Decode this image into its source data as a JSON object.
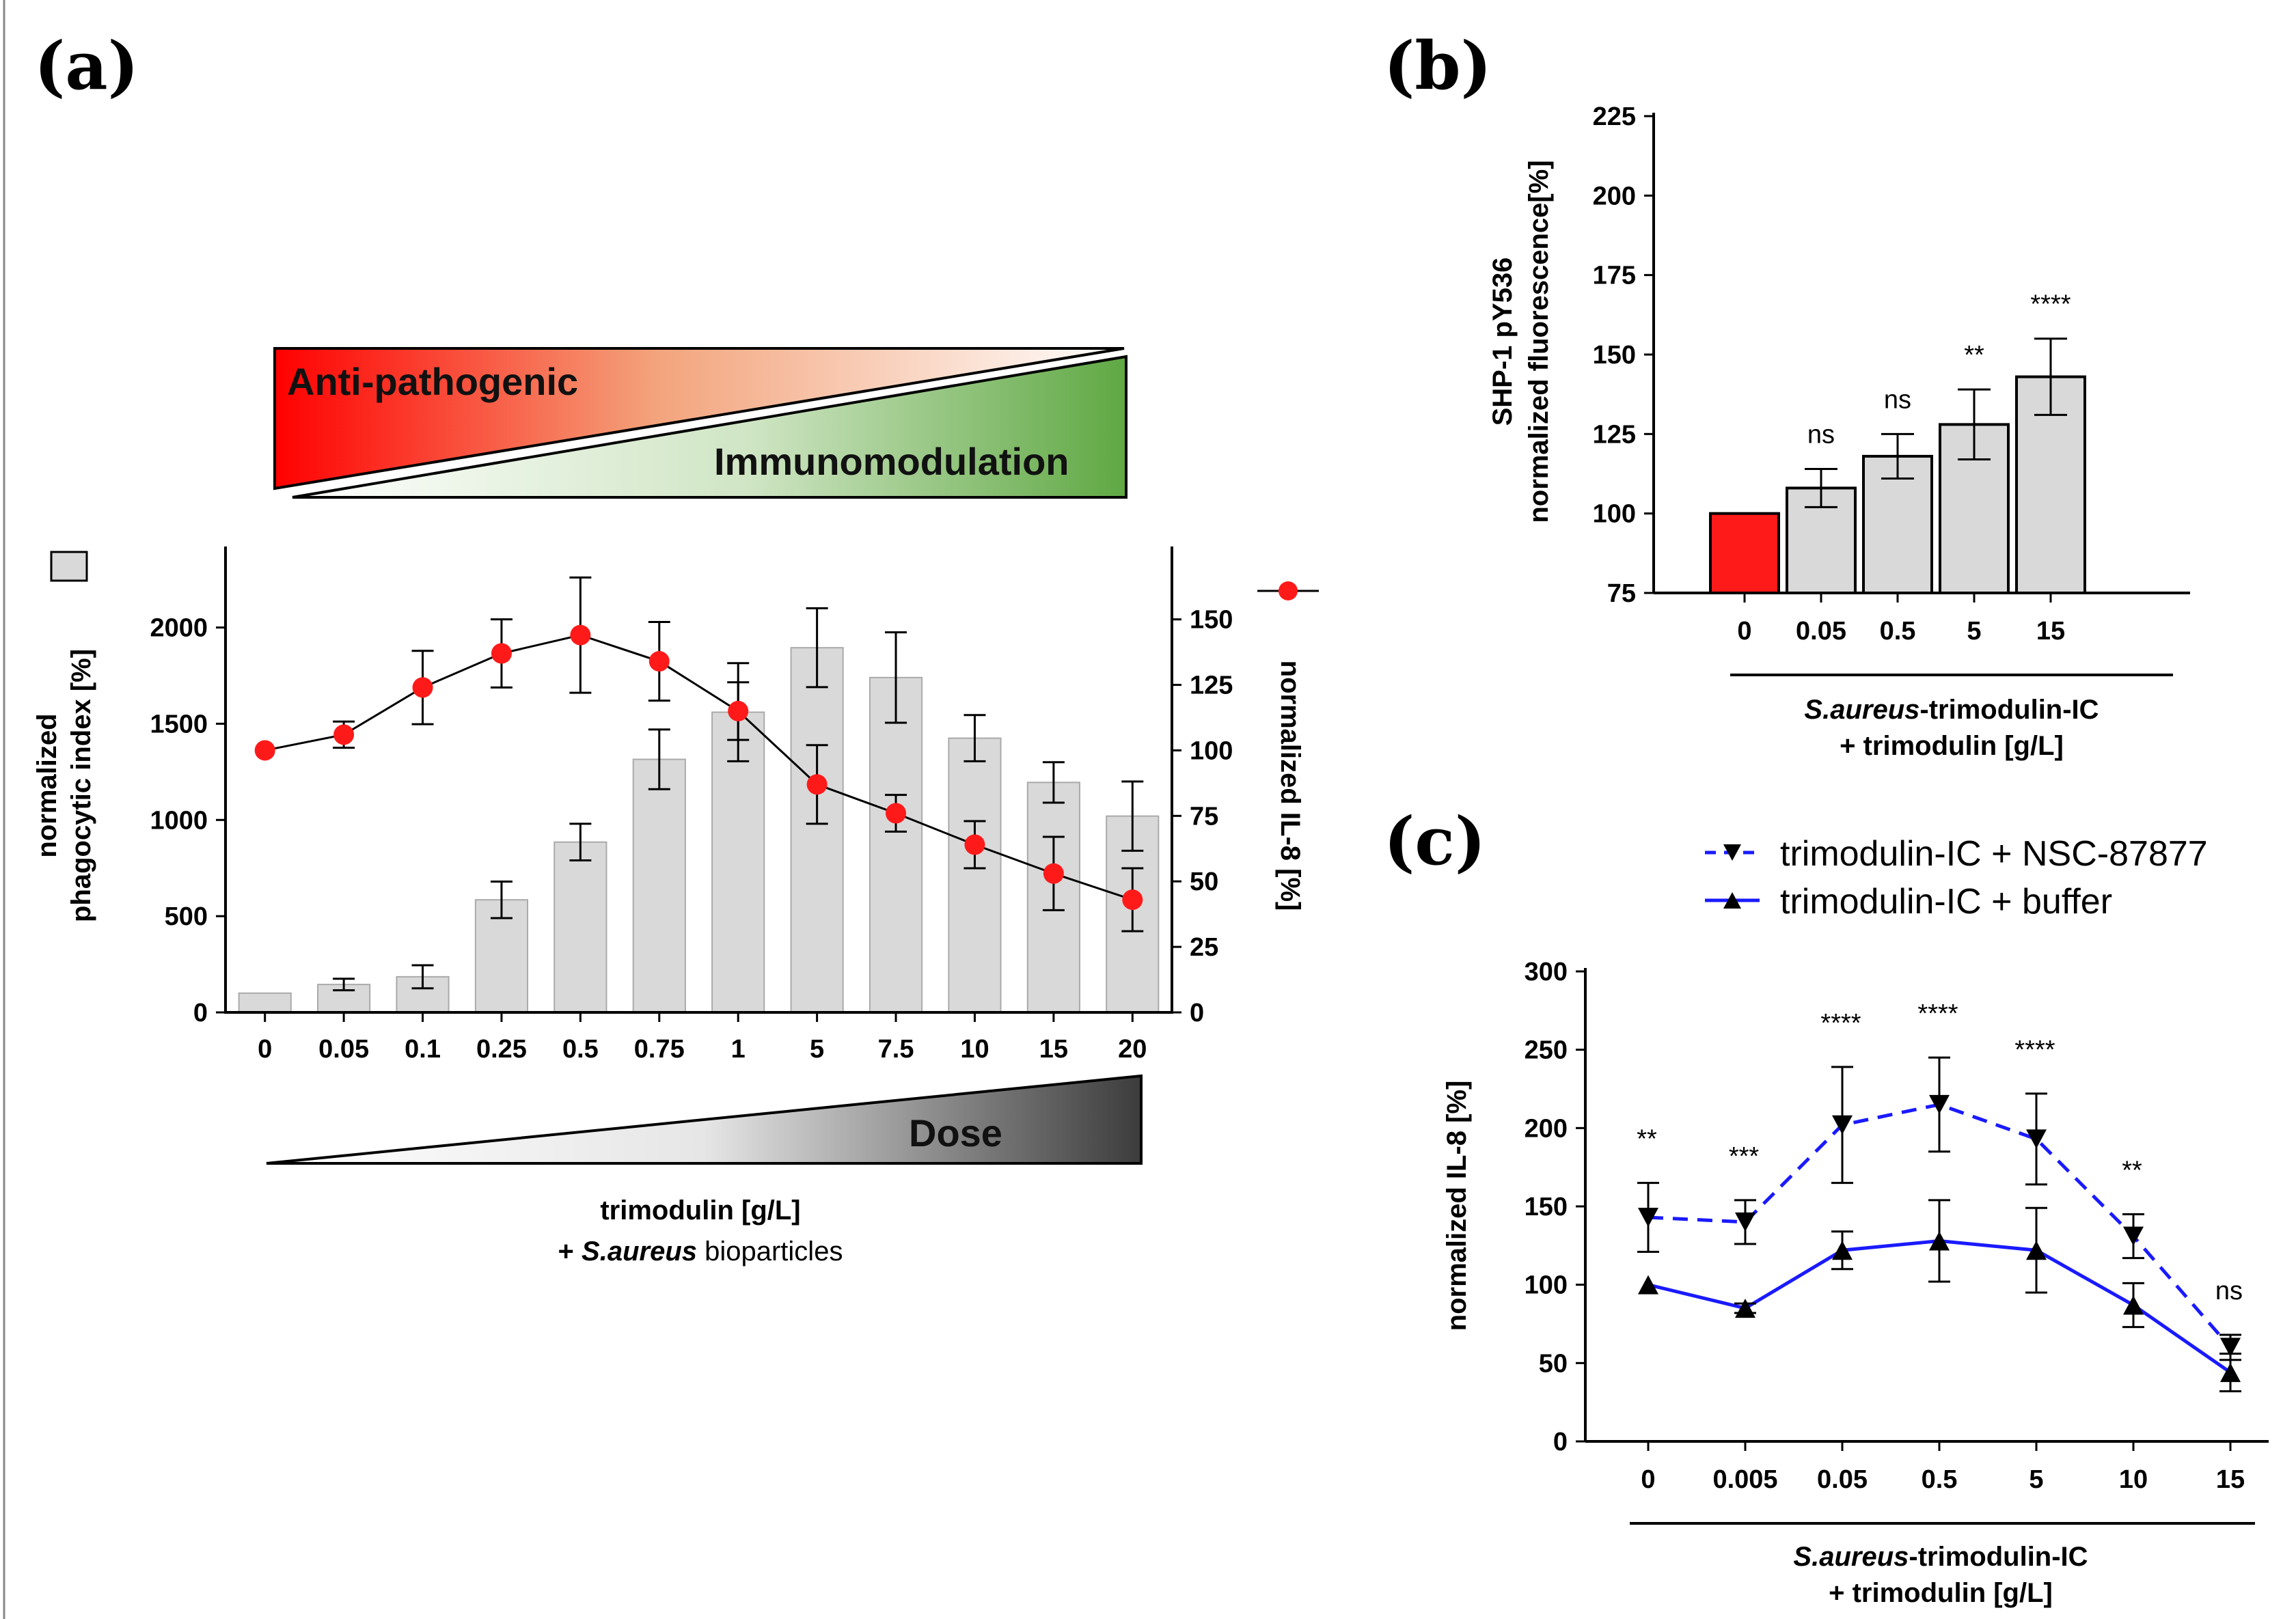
{
  "panels": {
    "a_label": "(a)",
    "b_label": "(b)",
    "c_label": "(c)"
  },
  "gradient_labels": {
    "top_left": "Anti-pathogenic",
    "top_right": "Immunomodulation",
    "dose": "Dose"
  },
  "colors": {
    "red": "#ff1a1a",
    "green": "#6aa84f",
    "bar_gray": "#d9d9d9",
    "blue": "#1a1aff",
    "dark": "#444444"
  },
  "chart_data": [
    {
      "id": "a",
      "type": "bar",
      "title": "",
      "categories": [
        "0",
        "0.05",
        "0.1",
        "0.25",
        "0.5",
        "0.75",
        "1",
        "5",
        "7.5",
        "10",
        "15",
        "20"
      ],
      "series": [
        {
          "name": "normalized phagocytic index [%]",
          "kind": "bar",
          "axis": "left",
          "values": [
            100,
            145,
            185,
            585,
            885,
            1315,
            1560,
            1895,
            1740,
            1425,
            1195,
            1020
          ],
          "errors": [
            0,
            30,
            60,
            95,
            95,
            155,
            255,
            205,
            235,
            120,
            105,
            180
          ]
        },
        {
          "name": "normalized IL-8 [%]",
          "kind": "line",
          "axis": "right",
          "values": [
            100,
            106,
            124,
            137,
            144,
            134,
            115,
            87,
            76,
            64,
            53,
            43
          ],
          "errors": [
            0,
            5,
            14,
            13,
            22,
            15,
            11,
            15,
            7,
            9,
            14,
            12
          ]
        }
      ],
      "left_axis": {
        "label_line1": "normalized",
        "label_line2": "phagocytic index [%]",
        "ylim": [
          0,
          2350
        ],
        "ticks": [
          "0",
          "500",
          "1000",
          "1500",
          "2000"
        ]
      },
      "right_axis": {
        "label": "normalized IL-8 [%]",
        "ylim": [
          0,
          172.6
        ],
        "ticks": [
          "0",
          "25",
          "50",
          "75",
          "100",
          "125",
          "150"
        ]
      },
      "xlabel_line1": "trimodulin [g/L]",
      "xlabel_line2_prefix": "+ ",
      "xlabel_line2_italic": "S.aureus",
      "xlabel_line2_suffix": " bioparticles"
    },
    {
      "id": "b",
      "type": "bar",
      "categories": [
        "0",
        "0.05",
        "0.5",
        "5",
        "15"
      ],
      "values": [
        100,
        108,
        118,
        128,
        143
      ],
      "errors": [
        0,
        6,
        7,
        11,
        12
      ],
      "significance": [
        "",
        "ns",
        "ns",
        "**",
        "****"
      ],
      "ylabel_line1": "SHP-1 pY536",
      "ylabel_line2": "normalized fluorescence[%]",
      "ylim": [
        75,
        225
      ],
      "yticks": [
        "75",
        "100",
        "125",
        "150",
        "175",
        "200",
        "225"
      ],
      "xlabel_line1_italic": "S.aureus",
      "xlabel_line1_suffix": "-trimodulin-IC",
      "xlabel_line2": "+  trimodulin [g/L]"
    },
    {
      "id": "c",
      "type": "line",
      "categories": [
        "0",
        "0.005",
        "0.05",
        "0.5",
        "5",
        "10",
        "15"
      ],
      "series": [
        {
          "name": "trimodulin-IC + NSC-87877",
          "style": "dashed",
          "marker": "down-triangle",
          "values": [
            143,
            140,
            202,
            215,
            193,
            131,
            60
          ],
          "errors": [
            22,
            14,
            37,
            30,
            29,
            14,
            8
          ]
        },
        {
          "name": "trimodulin-IC + buffer",
          "style": "solid",
          "marker": "up-triangle",
          "values": [
            100,
            85,
            122,
            128,
            122,
            87,
            44
          ],
          "errors": [
            0,
            3,
            12,
            26,
            27,
            14,
            12
          ]
        }
      ],
      "significance": [
        "**",
        "***",
        "****",
        "****",
        "****",
        "**",
        "ns"
      ],
      "ylabel": "normalized IL-8 [%]",
      "ylim": [
        0,
        300
      ],
      "yticks": [
        "0",
        "50",
        "100",
        "150",
        "200",
        "250",
        "300"
      ],
      "xlabel_line1_italic": "S.aureus",
      "xlabel_line1_suffix": "-trimodulin-IC",
      "xlabel_line2": "+ trimodulin [g/L]"
    }
  ]
}
